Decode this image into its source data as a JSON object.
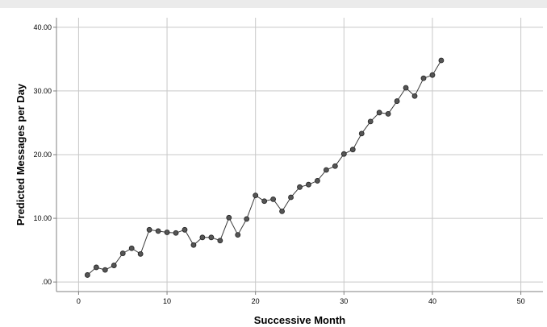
{
  "chart_data": {
    "type": "line",
    "title": "",
    "xlabel": "Successive Month",
    "ylabel": "Predicted Messages per Day",
    "xlim": [
      -2.5,
      52.5
    ],
    "ylim": [
      -1.5,
      41.5
    ],
    "x_ticks": [
      0,
      10,
      20,
      30,
      40,
      50
    ],
    "x_tick_labels": [
      "0",
      "10",
      "20",
      "30",
      "40",
      "50"
    ],
    "y_ticks": [
      0,
      10,
      20,
      30,
      40
    ],
    "y_tick_labels": [
      ".00",
      "10.00",
      "20.00",
      "30.00",
      "40.00"
    ],
    "grid": true,
    "colors": {
      "line": "#3a3a3a",
      "marker_fill": "#555555",
      "marker_stroke": "#222222",
      "grid": "#c8c8c8",
      "axis": "#808080",
      "header_bar": "#ebebeb"
    },
    "series": [
      {
        "x": [
          1,
          2,
          3,
          4,
          5,
          6,
          7,
          8,
          9,
          10,
          11,
          12,
          13,
          14,
          15,
          16,
          17,
          18,
          19,
          20,
          21,
          22,
          23,
          24,
          25,
          26,
          27,
          28,
          29,
          30,
          31,
          32,
          33,
          34,
          35,
          36,
          37,
          38,
          39,
          40,
          41
        ],
        "values": [
          1.1,
          2.3,
          1.9,
          2.6,
          4.5,
          5.3,
          4.4,
          8.2,
          8.0,
          7.8,
          7.7,
          8.2,
          5.8,
          7.0,
          7.0,
          6.5,
          10.1,
          7.4,
          9.9,
          13.6,
          12.7,
          13.0,
          11.1,
          13.3,
          14.9,
          15.3,
          15.9,
          17.6,
          18.2,
          20.1,
          20.8,
          23.3,
          25.2,
          26.6,
          26.4,
          28.4,
          30.5,
          29.2,
          32.0,
          32.5,
          34.8
        ]
      }
    ]
  }
}
